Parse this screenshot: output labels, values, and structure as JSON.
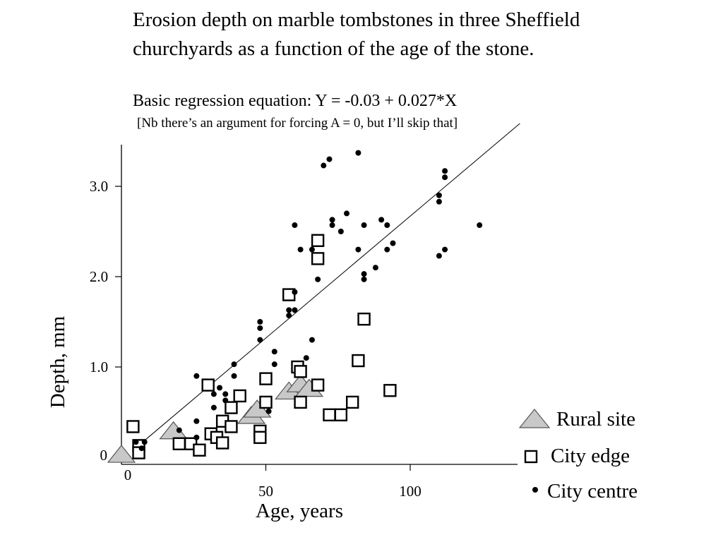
{
  "title": "Erosion depth on marble tombstones in three Sheffield churchyards as a function of the age of the stone.",
  "equation": "Basic regression equation: Y = -0.03 + 0.027*X",
  "note": "[Nb there’s an argument for forcing A = 0, but I’ll skip that]",
  "chart_data": {
    "type": "scatter",
    "xlabel": "Age, years",
    "ylabel": "Depth, mm",
    "xlim": [
      0,
      135
    ],
    "ylim": [
      0,
      3.4
    ],
    "x_ticks": [
      {
        "value": 0,
        "label": "0"
      },
      {
        "value": 50,
        "label": "50"
      },
      {
        "value": 100,
        "label": "100"
      }
    ],
    "y_ticks": [
      {
        "value": 0,
        "label": "0"
      },
      {
        "value": 1.0,
        "label": "1.0"
      },
      {
        "value": 2.0,
        "label": "2.0"
      },
      {
        "value": 3.0,
        "label": "3.0"
      }
    ],
    "legend_position": "bottom-right",
    "regression": {
      "intercept": -0.03,
      "slope": 0.027
    },
    "series": [
      {
        "name": "Rural site",
        "marker": "triangle",
        "color": "#c8c8c8",
        "points": [
          [
            0,
            0.02
          ],
          [
            18,
            0.28
          ],
          [
            45,
            0.45
          ],
          [
            47,
            0.52
          ],
          [
            58,
            0.72
          ],
          [
            62,
            0.8
          ],
          [
            65,
            0.75
          ]
        ]
      },
      {
        "name": "City edge",
        "marker": "square",
        "color": "#000000",
        "points": [
          [
            4,
            0.34
          ],
          [
            6,
            0.13
          ],
          [
            6,
            0.05
          ],
          [
            20,
            0.15
          ],
          [
            24,
            0.15
          ],
          [
            27,
            0.08
          ],
          [
            30,
            0.8
          ],
          [
            31,
            0.26
          ],
          [
            33,
            0.22
          ],
          [
            35,
            0.4
          ],
          [
            35,
            0.16
          ],
          [
            38,
            0.55
          ],
          [
            38,
            0.34
          ],
          [
            41,
            0.68
          ],
          [
            48,
            0.29
          ],
          [
            48,
            0.22
          ],
          [
            50,
            0.87
          ],
          [
            50,
            0.61
          ],
          [
            58,
            1.8
          ],
          [
            61,
            1.0
          ],
          [
            62,
            0.95
          ],
          [
            62,
            0.61
          ],
          [
            68,
            2.4
          ],
          [
            68,
            2.2
          ],
          [
            68,
            0.8
          ],
          [
            72,
            0.47
          ],
          [
            76,
            0.47
          ],
          [
            80,
            0.61
          ],
          [
            82,
            1.07
          ],
          [
            84,
            1.53
          ],
          [
            93,
            0.74
          ]
        ]
      },
      {
        "name": "City centre",
        "marker": "dot",
        "color": "#000000",
        "points": [
          [
            5,
            0.17
          ],
          [
            7,
            0.1
          ],
          [
            8,
            0.17
          ],
          [
            20,
            0.3
          ],
          [
            26,
            0.4
          ],
          [
            26,
            0.9
          ],
          [
            26,
            0.22
          ],
          [
            32,
            0.55
          ],
          [
            32,
            0.7
          ],
          [
            34,
            0.77
          ],
          [
            36,
            0.63
          ],
          [
            36,
            0.7
          ],
          [
            39,
            1.03
          ],
          [
            39,
            0.9
          ],
          [
            48,
            1.5
          ],
          [
            48,
            1.43
          ],
          [
            48,
            1.3
          ],
          [
            51,
            0.51
          ],
          [
            53,
            1.17
          ],
          [
            53,
            1.03
          ],
          [
            58,
            1.57
          ],
          [
            58,
            1.63
          ],
          [
            60,
            1.63
          ],
          [
            60,
            1.83
          ],
          [
            60,
            2.57
          ],
          [
            62,
            2.3
          ],
          [
            64,
            1.1
          ],
          [
            66,
            1.3
          ],
          [
            66,
            2.3
          ],
          [
            68,
            1.97
          ],
          [
            70,
            3.23
          ],
          [
            72,
            3.3
          ],
          [
            73,
            2.63
          ],
          [
            73,
            2.57
          ],
          [
            76,
            2.5
          ],
          [
            78,
            2.7
          ],
          [
            82,
            3.37
          ],
          [
            82,
            2.3
          ],
          [
            84,
            2.57
          ],
          [
            84,
            2.03
          ],
          [
            84,
            1.97
          ],
          [
            88,
            2.1
          ],
          [
            90,
            2.63
          ],
          [
            92,
            2.57
          ],
          [
            92,
            2.3
          ],
          [
            94,
            2.37
          ],
          [
            110,
            2.9
          ],
          [
            110,
            2.83
          ],
          [
            110,
            2.23
          ],
          [
            112,
            3.17
          ],
          [
            112,
            3.1
          ],
          [
            112,
            2.3
          ],
          [
            124,
            2.57
          ]
        ]
      }
    ]
  }
}
